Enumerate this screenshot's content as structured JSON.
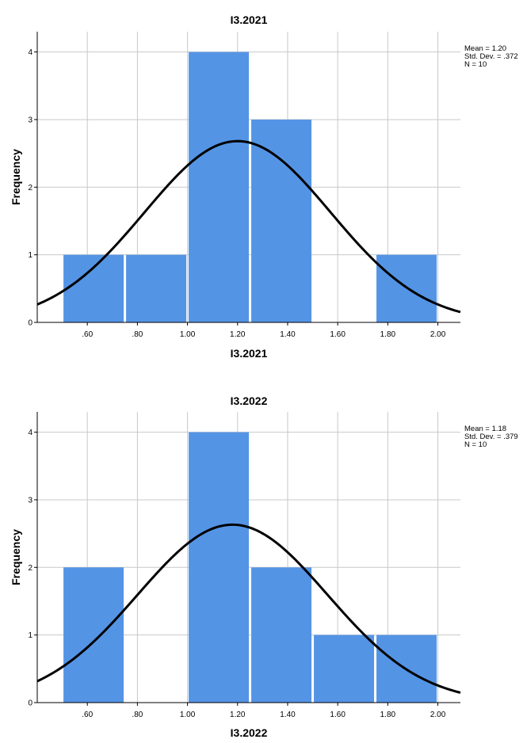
{
  "chart_data": [
    {
      "type": "bar",
      "title": "I3.2021",
      "xlabel": "I3.2021",
      "ylabel": "Frequency",
      "x_ticks": [
        ".60",
        ".80",
        "1.00",
        "1.20",
        "1.40",
        "1.60",
        "1.80",
        "2.00"
      ],
      "y_ticks": [
        "0",
        "1",
        "2",
        "3",
        "4"
      ],
      "xlim": [
        0.4,
        2.09
      ],
      "ylim": [
        0,
        4.3
      ],
      "bins": [
        {
          "start": 0.5,
          "end": 0.75,
          "count": 1
        },
        {
          "start": 0.75,
          "end": 1.0,
          "count": 1
        },
        {
          "start": 1.0,
          "end": 1.25,
          "count": 4
        },
        {
          "start": 1.25,
          "end": 1.5,
          "count": 3
        },
        {
          "start": 1.5,
          "end": 1.75,
          "count": 0
        },
        {
          "start": 1.75,
          "end": 2.0,
          "count": 1
        }
      ],
      "normal_curve": {
        "mean": 1.2,
        "sd": 0.372,
        "n": 10,
        "bin_width": 0.25
      },
      "stats_lines": [
        "Mean = 1.20",
        "Std. Dev. = .372",
        "N = 10"
      ],
      "grid": true,
      "bar_color": "#5494e5",
      "curve_color": "#000000"
    },
    {
      "type": "bar",
      "title": "I3.2022",
      "xlabel": "I3.2022",
      "ylabel": "Frequency",
      "x_ticks": [
        ".60",
        ".80",
        "1.00",
        "1.20",
        "1.40",
        "1.60",
        "1.80",
        "2.00"
      ],
      "y_ticks": [
        "0",
        "1",
        "2",
        "3",
        "4"
      ],
      "xlim": [
        0.4,
        2.09
      ],
      "ylim": [
        0,
        4.3
      ],
      "bins": [
        {
          "start": 0.5,
          "end": 0.75,
          "count": 2
        },
        {
          "start": 0.75,
          "end": 1.0,
          "count": 0
        },
        {
          "start": 1.0,
          "end": 1.25,
          "count": 4
        },
        {
          "start": 1.25,
          "end": 1.5,
          "count": 2
        },
        {
          "start": 1.5,
          "end": 1.75,
          "count": 1
        },
        {
          "start": 1.75,
          "end": 2.0,
          "count": 1
        }
      ],
      "normal_curve": {
        "mean": 1.18,
        "sd": 0.379,
        "n": 10,
        "bin_width": 0.25
      },
      "stats_lines": [
        "Mean = 1.18",
        "Std. Dev. = .379",
        "N = 10"
      ],
      "grid": true,
      "bar_color": "#5494e5",
      "curve_color": "#000000"
    }
  ]
}
